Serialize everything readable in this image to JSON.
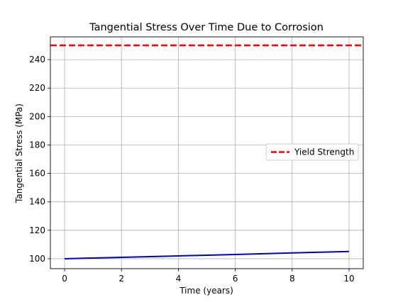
{
  "chart_data": {
    "type": "line",
    "title": "Tangential Stress Over Time Due to Corrosion",
    "xlabel": "Time (years)",
    "ylabel": "Tangential Stress (MPa)",
    "xlim": [
      -0.5,
      10.5
    ],
    "ylim": [
      93,
      256
    ],
    "xticks": [
      0,
      2,
      4,
      6,
      8,
      10
    ],
    "yticks": [
      100,
      120,
      140,
      160,
      180,
      200,
      220,
      240
    ],
    "grid": true,
    "legend_position": "center-right",
    "series": [
      {
        "color": "#0000cc",
        "x": [
          0,
          1,
          2,
          3,
          4,
          5,
          6,
          7,
          8,
          9,
          10
        ],
        "y": [
          100.0,
          100.5,
          101.0,
          101.5,
          102.0,
          102.5,
          103.0,
          103.5,
          104.1,
          104.6,
          105.1
        ]
      }
    ],
    "reference_lines": [
      {
        "name": "Yield Strength",
        "y": 250,
        "color": "#ff0000",
        "style": "dashed"
      }
    ]
  }
}
